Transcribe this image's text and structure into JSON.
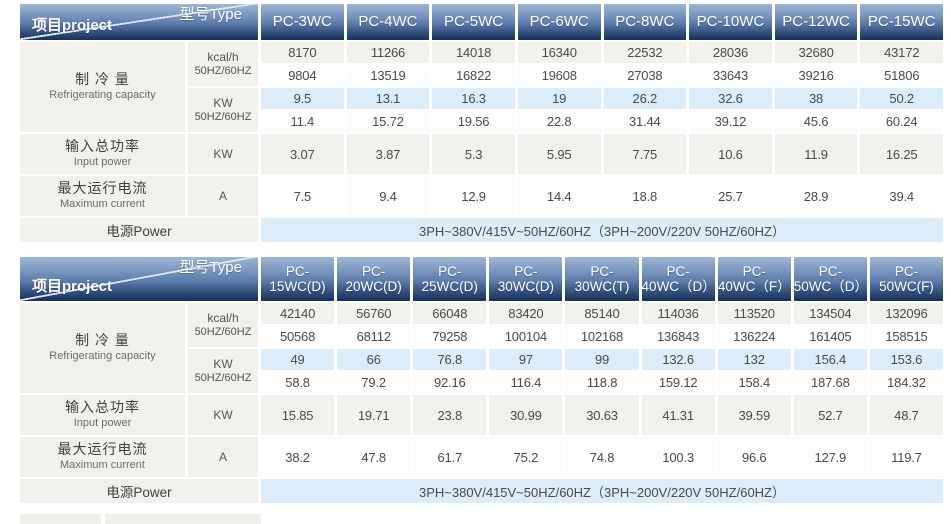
{
  "corner": {
    "type_label": "型号Type",
    "project_label": "项目project"
  },
  "row_labels": {
    "refrigerating": {
      "zh": "制 冷 量",
      "en": "Refrigerating capacity"
    },
    "input_power": {
      "zh": "输入总功率",
      "en": "Input power"
    },
    "max_current": {
      "zh": "最大运行电流",
      "en": "Maximum current"
    },
    "power": "电源Power"
  },
  "units": {
    "kcal": {
      "line1": "kcal/h",
      "line2": "50HZ/60HZ"
    },
    "kw_dual": {
      "line1": "KW",
      "line2": "50HZ/60HZ"
    },
    "kw": "KW",
    "amp": "A"
  },
  "tables": [
    {
      "name": "spec-table-small-models",
      "columns": [
        "PC-3WC",
        "PC-4WC",
        "PC-5WC",
        "PC-6WC",
        "PC-8WC",
        "PC-10WC",
        "PC-12WC",
        "PC-15WC"
      ],
      "rows": {
        "kcal_50hz": [
          "8170",
          "11266",
          "14018",
          "16340",
          "22532",
          "28036",
          "32680",
          "43172"
        ],
        "kcal_60hz": [
          "9804",
          "13519",
          "16822",
          "19608",
          "27038",
          "33643",
          "39216",
          "51806"
        ],
        "kw_50hz": [
          "9.5",
          "13.1",
          "16.3",
          "19",
          "26.2",
          "32.6",
          "38",
          "50.2"
        ],
        "kw_60hz": [
          "11.4",
          "15.72",
          "19.56",
          "22.8",
          "31.44",
          "39.12",
          "45.6",
          "60.24"
        ],
        "input_power_kw": [
          "3.07",
          "3.87",
          "5.3",
          "5.95",
          "7.75",
          "10.6",
          "11.9",
          "16.25"
        ],
        "max_current_a": [
          "7.5",
          "9.4",
          "12.9",
          "14.4",
          "18.8",
          "25.7",
          "28.9",
          "39.4"
        ]
      },
      "power_value": "3PH~380V/415V~50HZ/60HZ（3PH~200V/220V  50HZ/60HZ）"
    },
    {
      "name": "spec-table-large-models",
      "columns": [
        "PC-15WC(D)",
        "PC-20WC(D)",
        "PC-25WC(D)",
        "PC-30WC(D)",
        "PC-30WC(T)",
        "PC-40WC（D）",
        "PC-40WC（F）",
        "PC-50WC（D）",
        "PC-50WC(F)"
      ],
      "rows": {
        "kcal_50hz": [
          "42140",
          "56760",
          "66048",
          "83420",
          "85140",
          "114036",
          "113520",
          "134504",
          "132096"
        ],
        "kcal_60hz": [
          "50568",
          "68112",
          "79258",
          "100104",
          "102168",
          "136843",
          "136224",
          "161405",
          "158515"
        ],
        "kw_50hz": [
          "49",
          "66",
          "76.8",
          "97",
          "99",
          "132.6",
          "132",
          "156.4",
          "153.6"
        ],
        "kw_60hz": [
          "58.8",
          "79.2",
          "92.16",
          "116.4",
          "118.8",
          "159.12",
          "158.4",
          "187.68",
          "184.32"
        ],
        "input_power_kw": [
          "15.85",
          "19.71",
          "23.8",
          "30.99",
          "30.63",
          "41.31",
          "39.59",
          "52.7",
          "48.7"
        ],
        "max_current_a": [
          "38.2",
          "47.8",
          "61.7",
          "75.2",
          "74.8",
          "100.3",
          "96.6",
          "127.9",
          "119.7"
        ]
      },
      "power_value": "3PH~380V/415V~50HZ/60HZ（3PH~200V/220V  50HZ/60HZ）"
    }
  ]
}
